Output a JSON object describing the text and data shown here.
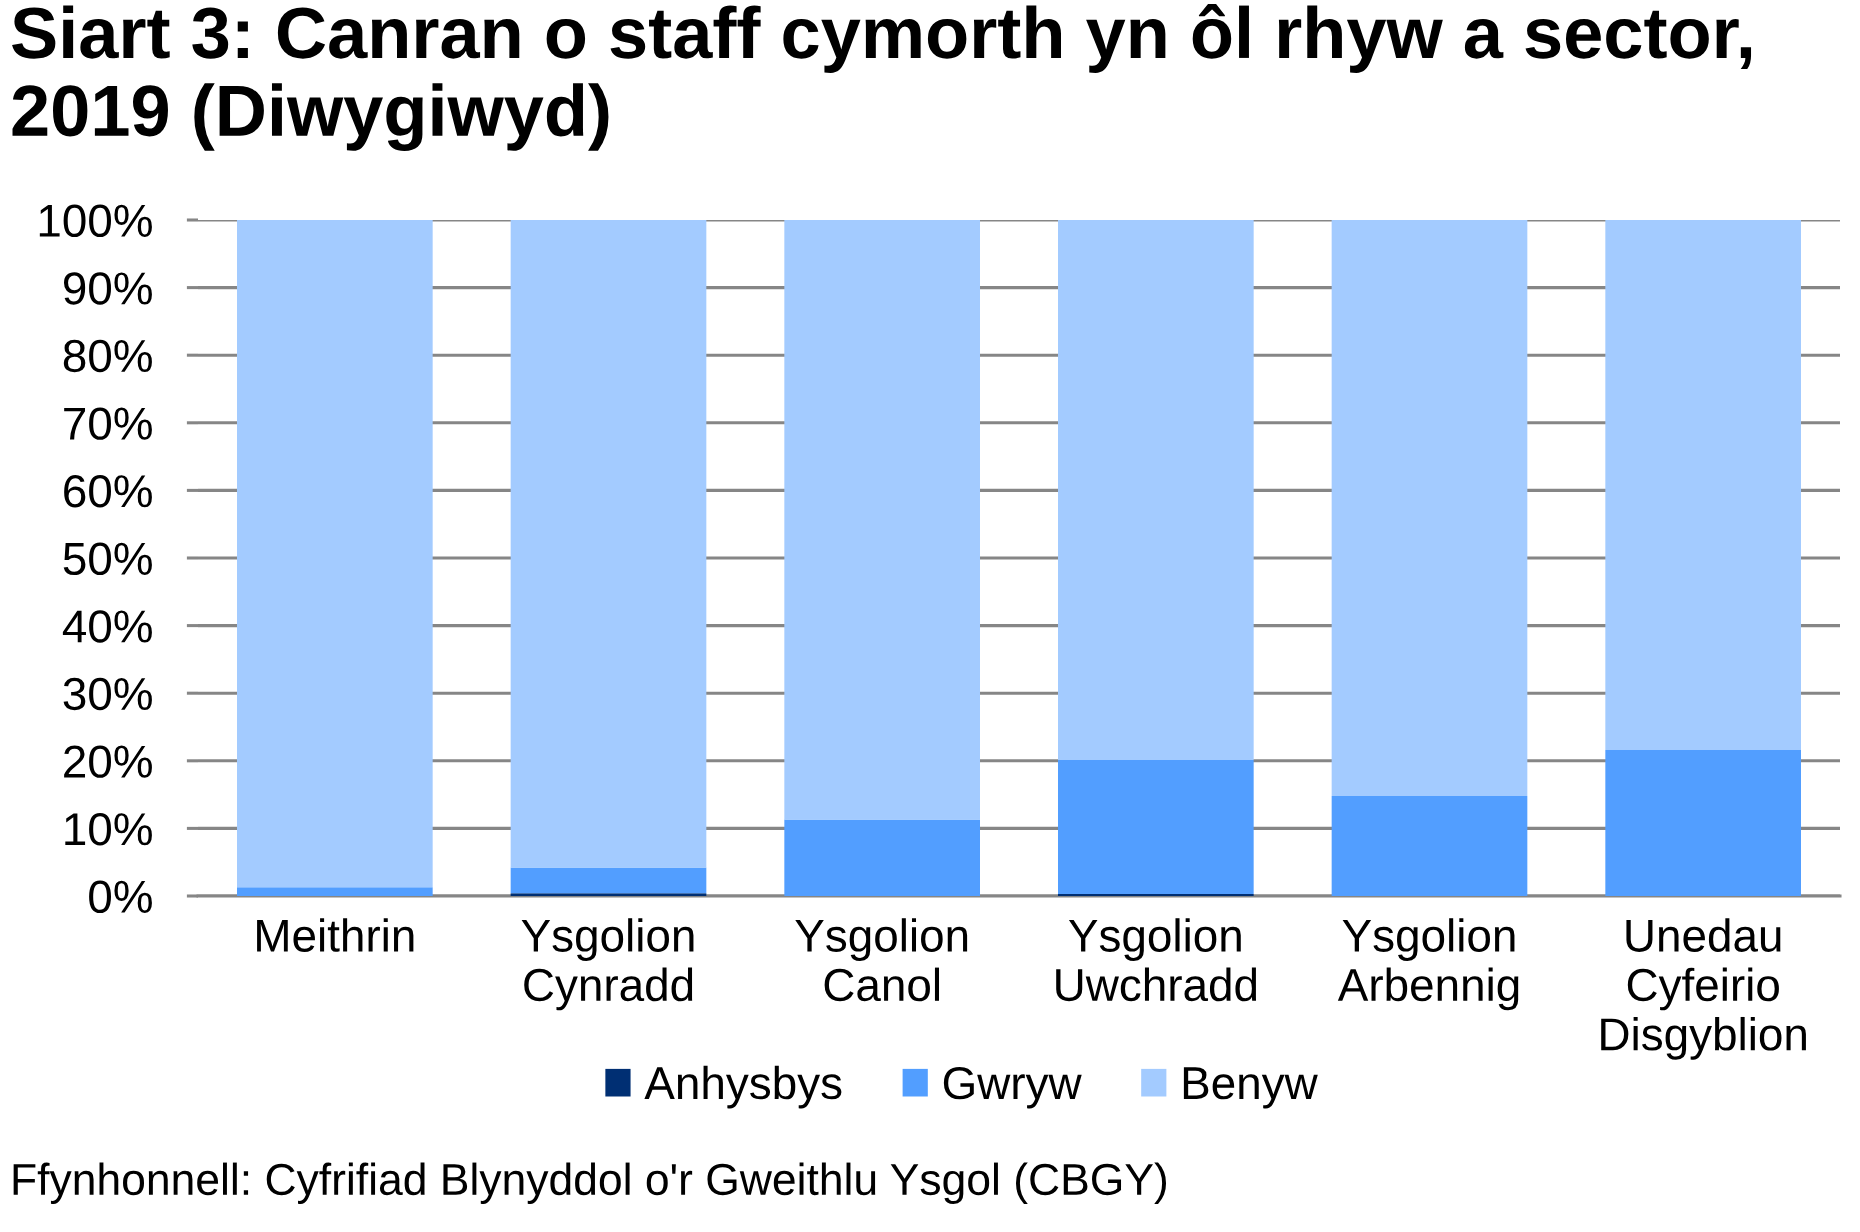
{
  "chart_data": {
    "type": "bar",
    "stacked": true,
    "title": "Siart 3: Canran o staff cymorth yn ôl rhyw a sector, 2019 (Diwygiwyd)",
    "categories": [
      "Meithrin",
      "Ysgolion\nCynradd",
      "Ysgolion\nCanol",
      "Ysgolion\nUwchradd",
      "Ysgolion\nArbennig",
      "Unedau\nCyfeirio\nDisgyblion"
    ],
    "series": [
      {
        "name": "Anhysbys",
        "color": "#002f73",
        "values": [
          0,
          0.4,
          0,
          0.3,
          0,
          0
        ]
      },
      {
        "name": "Gwryw",
        "color": "#529eff",
        "values": [
          1.3,
          3.8,
          11.3,
          19.8,
          14.8,
          21.6
        ]
      },
      {
        "name": "Benyw",
        "color": "#a3cbff",
        "values": [
          98.7,
          95.8,
          88.7,
          79.9,
          85.2,
          78.4
        ]
      }
    ],
    "ylim": [
      0,
      100
    ],
    "yticks": [
      {
        "value": 0,
        "label": "0%"
      },
      {
        "value": 10,
        "label": "10%"
      },
      {
        "value": 20,
        "label": "20%"
      },
      {
        "value": 30,
        "label": "30%"
      },
      {
        "value": 40,
        "label": "40%"
      },
      {
        "value": 50,
        "label": "50%"
      },
      {
        "value": 60,
        "label": "60%"
      },
      {
        "value": 70,
        "label": "70%"
      },
      {
        "value": 80,
        "label": "80%"
      },
      {
        "value": 90,
        "label": "90%"
      },
      {
        "value": 100,
        "label": "100%"
      }
    ],
    "grid": "y",
    "legend": "bottom",
    "annotations": [
      "Ffynhonnell: Cyfrifiad Blynyddol o'r Gweithlu Ysgol (CBGY)"
    ]
  }
}
